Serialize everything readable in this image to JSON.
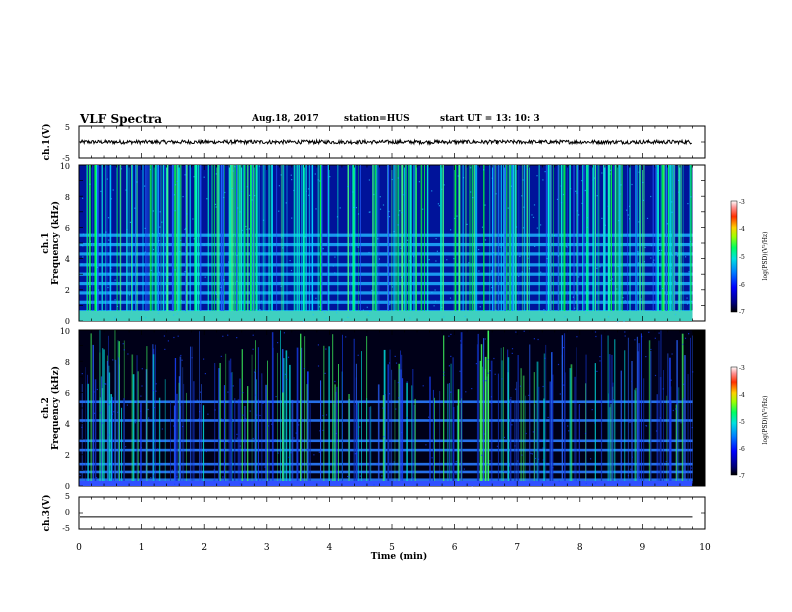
{
  "header": {
    "title": "VLF Spectra",
    "date": "Aug.18, 2017",
    "station": "station=HUS",
    "start": "start  UT =   13: 10: 3"
  },
  "chart_data": [
    {
      "type": "line",
      "name": "ch1-waveform",
      "ylabel": "ch.1(V)",
      "ylim": [
        -5,
        5
      ],
      "yticks": [
        "5",
        "-5"
      ],
      "xlim": [
        0,
        10
      ],
      "mean": 0,
      "noise_amplitude": 0.6
    },
    {
      "type": "heatmap",
      "name": "ch1-spectrogram",
      "ylabel_line1": "ch.1",
      "ylabel_line2": "Frequency (kHz)",
      "ylim": [
        0,
        10
      ],
      "yticks": [
        "0",
        "2",
        "4",
        "6",
        "8",
        "10"
      ],
      "xlim": [
        0,
        10
      ],
      "data_end_min": 9.8,
      "colorbar": {
        "label": "log(PSD)(V²/Hz)",
        "ticks": [
          "-3",
          "-4",
          "-5",
          "-6",
          "-7"
        ],
        "range": [
          -7,
          -3
        ]
      },
      "bands_khz": [
        0.6,
        1.2,
        1.8,
        2.4,
        3.0,
        3.6,
        4.3,
        4.9,
        5.5
      ]
    },
    {
      "type": "heatmap",
      "name": "ch2-spectrogram",
      "ylabel_line1": "ch.2",
      "ylabel_line2": "Frequency (kHz)",
      "ylim": [
        0,
        10
      ],
      "yticks": [
        "0",
        "2",
        "4",
        "6",
        "8",
        "10"
      ],
      "xlim": [
        0,
        10
      ],
      "data_end_min": 9.8,
      "colorbar": {
        "label": "log(PSD)(V²/Hz)",
        "ticks": [
          "-3",
          "-4",
          "-5",
          "-6",
          "-7"
        ],
        "range": [
          -7,
          -3
        ]
      },
      "bands_khz": [
        0.4,
        0.9,
        1.4,
        2.3,
        2.9,
        4.2,
        5.4
      ]
    },
    {
      "type": "line",
      "name": "ch3-waveform",
      "ylabel": "ch.3(V)",
      "ylim": [
        -5,
        5
      ],
      "yticks": [
        "5",
        "0",
        "-5"
      ],
      "xlim": [
        0,
        10
      ],
      "level": -1.2,
      "xlabel": "Time (min)",
      "xticks": [
        "0",
        "1",
        "2",
        "3",
        "4",
        "5",
        "6",
        "7",
        "8",
        "9",
        "10"
      ]
    }
  ]
}
